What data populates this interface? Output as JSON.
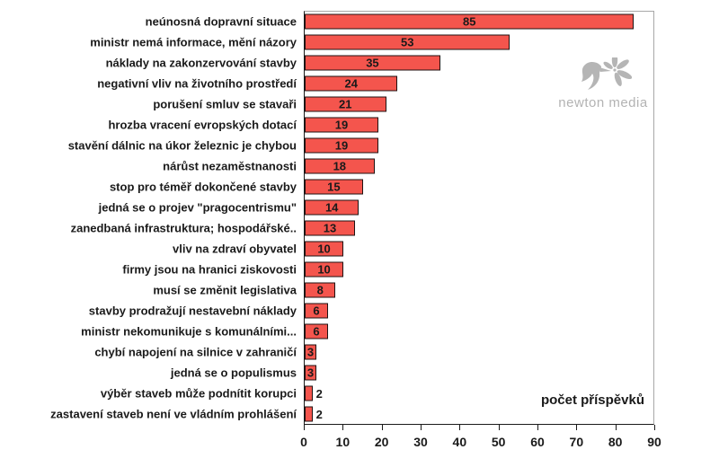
{
  "watermark": {
    "brand": "newton media"
  },
  "chart_data": {
    "type": "bar",
    "orientation": "horizontal",
    "title": "",
    "xlabel": "počet příspěvků",
    "ylabel": "",
    "xlim": [
      0,
      90
    ],
    "x_ticks": [
      0,
      10,
      20,
      30,
      40,
      50,
      60,
      70,
      80,
      90
    ],
    "grid": false,
    "legend": "none",
    "value_labels": "shown, centered inside bars (outside right for smallest bars)",
    "categories": [
      "neúnosná dopravní situace",
      "ministr nemá informace, mění názory",
      "náklady na zakonzervování stavby",
      "negativní vliv na životního prostředí",
      "porušení smluv se stavaři",
      "hrozba vracení evropských dotací",
      "stavění dálnic na úkor železnic je chybou",
      "nárůst nezaměstnanosti",
      "stop pro téměř dokončené stavby",
      "jedná se o projev \"pragocentrismu\"",
      "zanedbaná infrastruktura; hospodářské..",
      "vliv na zdraví obyvatel",
      "firmy jsou na hranici ziskovosti",
      "musí se změnit legislativa",
      "stavby prodražují nestavební náklady",
      "ministr nekomunikuje s komunálními...",
      "chybí napojení na silnice v zahraničí",
      "jedná se o populismus",
      "výběr staveb může podnítit korupci",
      "zastavení staveb není ve vládním prohlášení"
    ],
    "values": [
      85,
      53,
      35,
      24,
      21,
      19,
      19,
      18,
      15,
      14,
      13,
      10,
      10,
      8,
      6,
      6,
      3,
      3,
      2,
      2
    ],
    "colors": {
      "bar_fill": "#f4554d",
      "bar_border": "#1f1212",
      "axis": "#1a1a1a",
      "plot_border": "#a8a8a8",
      "text": "#1a1a1a",
      "watermark": "#b3b3b3"
    }
  }
}
